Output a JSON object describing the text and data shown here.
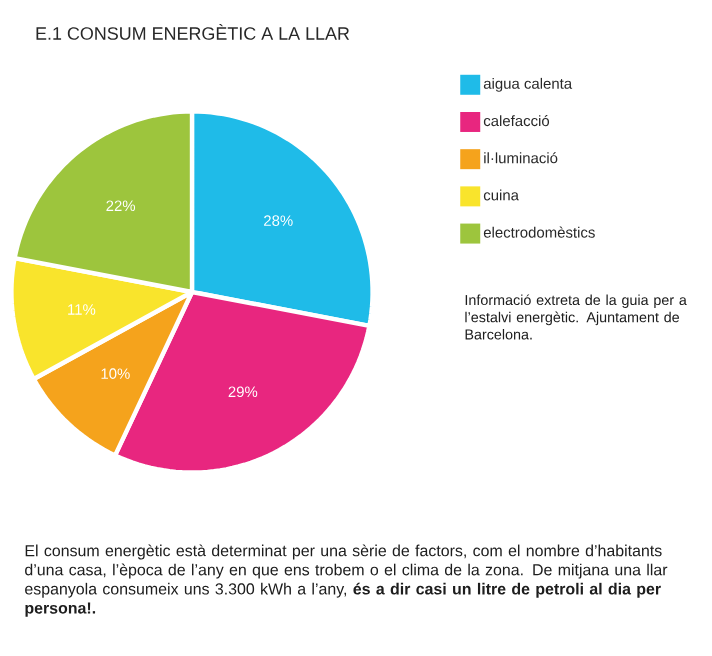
{
  "chart_data": {
    "type": "pie",
    "title": "E.1 CONSUM ENERGÈTIC A LA LLAR",
    "categories": [
      "aigua calenta",
      "calefacció",
      "il·luminació",
      "cuina",
      "electrodomèstics"
    ],
    "values": [
      28,
      29,
      10,
      11,
      22
    ],
    "colors": [
      "#1fbbe8",
      "#e8267f",
      "#f5a31c",
      "#f9e42c",
      "#9dc53d"
    ],
    "value_labels": [
      "28%",
      "29%",
      "10%",
      "11%",
      "22%"
    ],
    "legend": "right",
    "annotations": [
      "Informació extreta de la guia per a l’estalvi energètic. Ajuntament de Barcelona.",
      "El consum energètic està determinat per una sèrie de factors, com el nombre d’habitants d’una casa, l’època de l’any en que ens trobem o el clima de la zona. De mitjana una llar espanyola consumeix uns 3.300 kWh a l’any, **és a dir casi un litre de petroli al dia per persona!.**"
    ]
  }
}
